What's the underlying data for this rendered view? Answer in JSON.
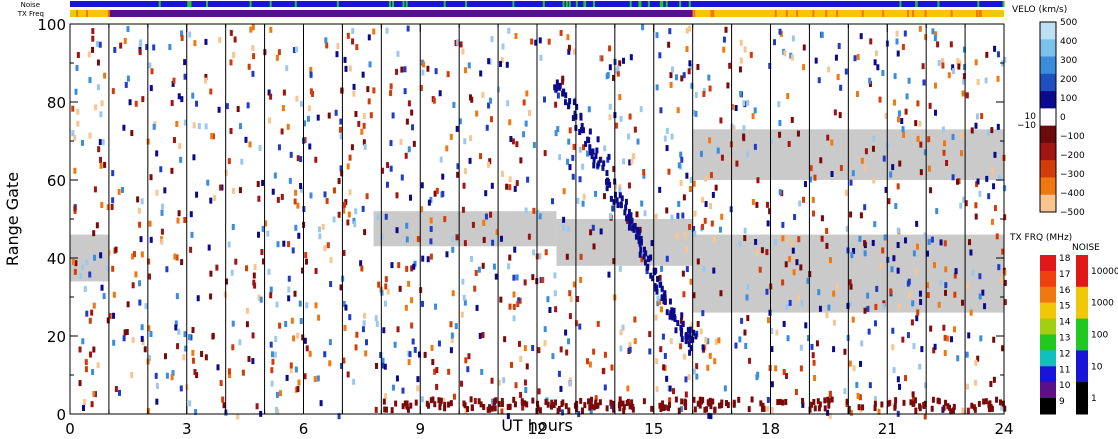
{
  "chart_data": {
    "type": "heatmap",
    "xlabel": "UT hours",
    "ylabel": "Range Gate",
    "x_ticks": [
      "0",
      "3",
      "6",
      "9",
      "12",
      "15",
      "18",
      "21",
      "24"
    ],
    "y_ticks": [
      "0",
      "20",
      "40",
      "60",
      "80",
      "100"
    ],
    "xlim": [
      0,
      24
    ],
    "ylim": [
      0,
      100
    ],
    "status_bars": {
      "noise_label": "Noise",
      "txfreq_label": "TX Freq"
    },
    "velocity_scale": {
      "title": "VELO (km/s)",
      "ticks": [
        "500",
        "400",
        "300",
        "200",
        "100",
        "0",
        "−100",
        "−200",
        "−300",
        "−400",
        "−500"
      ],
      "small_ticks": [
        "10",
        "−10"
      ]
    },
    "txfreq_scale": {
      "title": "TX FRQ (MHz)",
      "ticks": [
        "18",
        "17",
        "16",
        "15",
        "14",
        "13",
        "12",
        "11",
        "10",
        "9"
      ]
    },
    "noise_scale": {
      "title": "NOISE",
      "ticks": [
        "10000",
        "1000",
        "100",
        "10",
        "1"
      ]
    },
    "gray_bands": [
      {
        "t0": 0.0,
        "t1": 1.0,
        "g0": 34,
        "g1": 46
      },
      {
        "t0": 7.8,
        "t1": 12.5,
        "g0": 43,
        "g1": 52
      },
      {
        "t0": 12.5,
        "t1": 16.0,
        "g0": 38,
        "g1": 50
      },
      {
        "t0": 16.0,
        "t1": 24.0,
        "g0": 26,
        "g1": 46
      },
      {
        "t0": 16.0,
        "t1": 24.0,
        "g0": 60,
        "g1": 73
      }
    ],
    "blue_trail": [
      [
        12.4,
        86
      ],
      [
        12.8,
        80
      ],
      [
        13.2,
        72
      ],
      [
        13.6,
        64
      ],
      [
        14.0,
        56
      ],
      [
        14.4,
        50
      ],
      [
        14.6,
        45
      ],
      [
        14.9,
        38
      ],
      [
        15.2,
        31
      ],
      [
        15.5,
        26
      ],
      [
        15.8,
        21
      ],
      [
        16.0,
        18
      ]
    ]
  },
  "colors": {
    "noise_blue": "#1a14d8",
    "noise_green": "#22c822",
    "tx_yellow": "#f0c808",
    "tx_purple": "#5a1088",
    "gray": "#c4c4c4"
  }
}
